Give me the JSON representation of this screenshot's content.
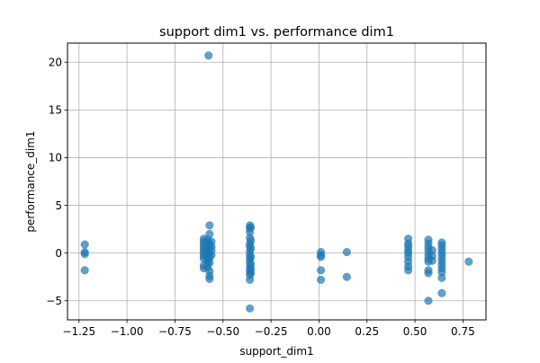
{
  "chart_data": {
    "type": "scatter",
    "title": "support dim1 vs. performance dim1",
    "xlabel": "support_dim1",
    "ylabel": "performance_dim1",
    "xlim": [
      -1.31,
      0.87
    ],
    "ylim": [
      -7.0,
      22.0
    ],
    "xticks": [
      -1.25,
      -1.0,
      -0.75,
      -0.5,
      -0.25,
      0.0,
      0.25,
      0.5,
      0.75
    ],
    "xtick_labels": [
      "−1.25",
      "−1.00",
      "−0.75",
      "−0.50",
      "−0.25",
      "0.00",
      "0.25",
      "0.50",
      "0.75"
    ],
    "yticks": [
      -5,
      0,
      5,
      10,
      15,
      20
    ],
    "ytick_labels": [
      "−5",
      "0",
      "5",
      "10",
      "15",
      "20"
    ],
    "grid": true,
    "marker_color": "#1f77b4",
    "marker_alpha": 0.7,
    "points": [
      {
        "x": -1.22,
        "y": 0.9
      },
      {
        "x": -1.22,
        "y": 0.1
      },
      {
        "x": -1.22,
        "y": -0.1
      },
      {
        "x": -1.22,
        "y": -1.8
      },
      {
        "x": -0.575,
        "y": 20.7
      },
      {
        "x": -0.6,
        "y": 1.5
      },
      {
        "x": -0.6,
        "y": 1.2
      },
      {
        "x": -0.6,
        "y": 0.9
      },
      {
        "x": -0.6,
        "y": 0.6
      },
      {
        "x": -0.6,
        "y": 0.3
      },
      {
        "x": -0.6,
        "y": 0.0
      },
      {
        "x": -0.6,
        "y": -0.3
      },
      {
        "x": -0.6,
        "y": -0.6
      },
      {
        "x": -0.6,
        "y": -1.3
      },
      {
        "x": -0.6,
        "y": -1.6
      },
      {
        "x": -0.58,
        "y": 1.4
      },
      {
        "x": -0.58,
        "y": 1.1
      },
      {
        "x": -0.58,
        "y": 0.8
      },
      {
        "x": -0.58,
        "y": 0.5
      },
      {
        "x": -0.58,
        "y": 0.2
      },
      {
        "x": -0.58,
        "y": -0.1
      },
      {
        "x": -0.58,
        "y": -0.4
      },
      {
        "x": -0.58,
        "y": -0.8
      },
      {
        "x": -0.58,
        "y": -1.1
      },
      {
        "x": -0.58,
        "y": -1.5
      },
      {
        "x": -0.57,
        "y": 2.9
      },
      {
        "x": -0.57,
        "y": 2.0
      },
      {
        "x": -0.57,
        "y": 1.0
      },
      {
        "x": -0.57,
        "y": 0.6
      },
      {
        "x": -0.57,
        "y": 0.0
      },
      {
        "x": -0.57,
        "y": -0.5
      },
      {
        "x": -0.57,
        "y": -1.0
      },
      {
        "x": -0.57,
        "y": -1.9
      },
      {
        "x": -0.57,
        "y": -2.4
      },
      {
        "x": -0.57,
        "y": -2.7
      },
      {
        "x": -0.56,
        "y": 1.2
      },
      {
        "x": -0.56,
        "y": 0.7
      },
      {
        "x": -0.56,
        "y": 0.3
      },
      {
        "x": -0.56,
        "y": -0.2
      },
      {
        "x": -0.36,
        "y": 2.9
      },
      {
        "x": -0.36,
        "y": 2.6
      },
      {
        "x": -0.36,
        "y": 2.2
      },
      {
        "x": -0.36,
        "y": 1.6
      },
      {
        "x": -0.36,
        "y": 1.0
      },
      {
        "x": -0.36,
        "y": 0.7
      },
      {
        "x": -0.36,
        "y": 0.2
      },
      {
        "x": -0.36,
        "y": -0.2
      },
      {
        "x": -0.36,
        "y": -0.6
      },
      {
        "x": -0.36,
        "y": -1.0
      },
      {
        "x": -0.36,
        "y": -1.5
      },
      {
        "x": -0.36,
        "y": -1.9
      },
      {
        "x": -0.36,
        "y": -2.3
      },
      {
        "x": -0.36,
        "y": -2.8
      },
      {
        "x": -0.36,
        "y": -5.8
      },
      {
        "x": -0.355,
        "y": 2.7
      },
      {
        "x": -0.355,
        "y": 1.3
      },
      {
        "x": -0.355,
        "y": 0.5
      },
      {
        "x": -0.355,
        "y": -0.4
      },
      {
        "x": -0.355,
        "y": -1.2
      },
      {
        "x": -0.355,
        "y": -1.7
      },
      {
        "x": -0.355,
        "y": -2.1
      },
      {
        "x": 0.01,
        "y": 0.1
      },
      {
        "x": 0.01,
        "y": -0.2
      },
      {
        "x": 0.01,
        "y": -0.4
      },
      {
        "x": 0.01,
        "y": -1.8
      },
      {
        "x": 0.01,
        "y": -2.8
      },
      {
        "x": 0.145,
        "y": 0.1
      },
      {
        "x": 0.145,
        "y": -2.5
      },
      {
        "x": 0.465,
        "y": 1.5
      },
      {
        "x": 0.465,
        "y": 1.0
      },
      {
        "x": 0.465,
        "y": 0.7
      },
      {
        "x": 0.465,
        "y": 0.3
      },
      {
        "x": 0.465,
        "y": 0.0
      },
      {
        "x": 0.465,
        "y": -0.4
      },
      {
        "x": 0.465,
        "y": -0.9
      },
      {
        "x": 0.465,
        "y": -1.4
      },
      {
        "x": 0.465,
        "y": -1.8
      },
      {
        "x": 0.57,
        "y": 1.4
      },
      {
        "x": 0.57,
        "y": 1.0
      },
      {
        "x": 0.57,
        "y": 0.6
      },
      {
        "x": 0.57,
        "y": 0.2
      },
      {
        "x": 0.57,
        "y": -0.2
      },
      {
        "x": 0.57,
        "y": -0.6
      },
      {
        "x": 0.57,
        "y": -0.9
      },
      {
        "x": 0.57,
        "y": -1.8
      },
      {
        "x": 0.57,
        "y": -2.1
      },
      {
        "x": 0.57,
        "y": -5.0
      },
      {
        "x": 0.59,
        "y": 0.3
      },
      {
        "x": 0.59,
        "y": -0.3
      },
      {
        "x": 0.59,
        "y": -0.8
      },
      {
        "x": 0.64,
        "y": 1.1
      },
      {
        "x": 0.64,
        "y": 0.8
      },
      {
        "x": 0.64,
        "y": 0.4
      },
      {
        "x": 0.64,
        "y": 0.0
      },
      {
        "x": 0.64,
        "y": -0.4
      },
      {
        "x": 0.64,
        "y": -0.8
      },
      {
        "x": 0.64,
        "y": -1.2
      },
      {
        "x": 0.64,
        "y": -1.6
      },
      {
        "x": 0.64,
        "y": -2.0
      },
      {
        "x": 0.64,
        "y": -2.6
      },
      {
        "x": 0.64,
        "y": -4.2
      },
      {
        "x": 0.78,
        "y": -0.9
      }
    ]
  }
}
